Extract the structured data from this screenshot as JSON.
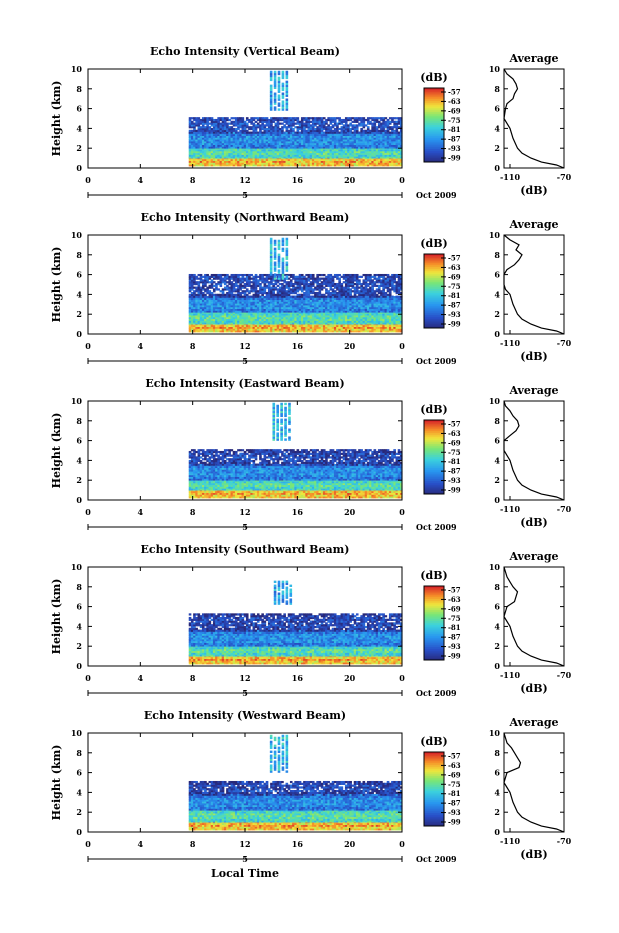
{
  "chart_data": [
    {
      "type": "heatmap",
      "title": "Echo Intensity (Vertical Beam)",
      "ylabel": "Height (km)",
      "ylim": [
        0,
        10
      ],
      "yticks": [
        "0",
        "2",
        "4",
        "6",
        "8",
        "10"
      ],
      "xlim": [
        0,
        24
      ],
      "xticks": [
        "0",
        "4",
        "8",
        "12",
        "16",
        "20",
        "0"
      ],
      "date_marker": "5",
      "date_label": "Oct 2009",
      "colorbar": {
        "unit": "(dB)",
        "ticks": [
          "-57",
          "-63",
          "-69",
          "-75",
          "-81",
          "-87",
          "-93",
          "-99"
        ]
      },
      "avg_panel": {
        "title": "Average",
        "xlabel": "(dB)",
        "xticks": [
          "-110",
          "-70"
        ],
        "yticks": [
          "0",
          "2",
          "4",
          "6",
          "8",
          "10"
        ]
      },
      "data_start_hour": 7.7,
      "layers": [
        {
          "y0": 0.2,
          "y1": 1.0,
          "level": 0.85
        },
        {
          "y0": 1.0,
          "y1": 2.0,
          "level": 0.55
        },
        {
          "y0": 2.0,
          "y1": 3.5,
          "level": 0.3
        },
        {
          "y0": 3.5,
          "y1": 5.0,
          "level": 0.15
        }
      ],
      "spike": {
        "x": 14.5,
        "y0": 5.8,
        "y1": 9.7,
        "level": 0.35
      },
      "avg_profile": [
        [
          -70,
          0
        ],
        [
          -75,
          0.3
        ],
        [
          -85,
          0.6
        ],
        [
          -92,
          1
        ],
        [
          -98,
          1.5
        ],
        [
          -101,
          2
        ],
        [
          -104,
          3
        ],
        [
          -106,
          4
        ],
        [
          -108,
          4.5
        ],
        [
          -110,
          5
        ],
        [
          -109,
          6
        ],
        [
          -108,
          6.5
        ],
        [
          -104,
          7
        ],
        [
          -103,
          7.5
        ],
        [
          -101,
          8
        ],
        [
          -102,
          8.5
        ],
        [
          -104,
          9
        ],
        [
          -108,
          9.5
        ],
        [
          -110,
          10
        ]
      ]
    },
    {
      "type": "heatmap",
      "title": "Echo Intensity (Northward Beam)",
      "ylabel": "Height (km)",
      "ylim": [
        0,
        10
      ],
      "yticks": [
        "0",
        "2",
        "4",
        "6",
        "8",
        "10"
      ],
      "xlim": [
        0,
        24
      ],
      "xticks": [
        "0",
        "4",
        "8",
        "12",
        "16",
        "20",
        "0"
      ],
      "date_marker": "5",
      "date_label": "Oct 2009",
      "colorbar": {
        "unit": "(dB)",
        "ticks": [
          "-57",
          "-63",
          "-69",
          "-75",
          "-81",
          "-87",
          "-93",
          "-99"
        ]
      },
      "avg_panel": {
        "title": "Average",
        "xlabel": "(dB)",
        "xticks": [
          "-110",
          "-70"
        ],
        "yticks": [
          "0",
          "2",
          "4",
          "6",
          "8",
          "10"
        ]
      },
      "data_start_hour": 7.7,
      "layers": [
        {
          "y0": 0.2,
          "y1": 1.0,
          "level": 0.85
        },
        {
          "y0": 1.0,
          "y1": 2.2,
          "level": 0.55
        },
        {
          "y0": 2.2,
          "y1": 3.7,
          "level": 0.3
        },
        {
          "y0": 3.7,
          "y1": 6.0,
          "level": 0.12
        }
      ],
      "spike": {
        "x": 14.5,
        "y0": 5.5,
        "y1": 9.5,
        "level": 0.4
      },
      "avg_profile": [
        [
          -70,
          0
        ],
        [
          -75,
          0.3
        ],
        [
          -85,
          0.6
        ],
        [
          -92,
          1
        ],
        [
          -98,
          1.5
        ],
        [
          -101,
          2
        ],
        [
          -104,
          3
        ],
        [
          -106,
          4
        ],
        [
          -109,
          4.5
        ],
        [
          -110,
          5
        ],
        [
          -110,
          6
        ],
        [
          -108,
          6.5
        ],
        [
          -103,
          7
        ],
        [
          -100,
          7.5
        ],
        [
          -98,
          8
        ],
        [
          -102,
          8.5
        ],
        [
          -100,
          9
        ],
        [
          -106,
          9.5
        ],
        [
          -110,
          10
        ]
      ]
    },
    {
      "type": "heatmap",
      "title": "Echo Intensity (Eastward Beam)",
      "ylabel": "Height (km)",
      "ylim": [
        0,
        10
      ],
      "yticks": [
        "0",
        "2",
        "4",
        "6",
        "8",
        "10"
      ],
      "xlim": [
        0,
        24
      ],
      "xticks": [
        "0",
        "4",
        "8",
        "12",
        "16",
        "20",
        "0"
      ],
      "date_marker": "5",
      "date_label": "Oct 2009",
      "colorbar": {
        "unit": "(dB)",
        "ticks": [
          "-57",
          "-63",
          "-69",
          "-75",
          "-81",
          "-87",
          "-93",
          "-99"
        ]
      },
      "avg_panel": {
        "title": "Average",
        "xlabel": "(dB)",
        "xticks": [
          "-110",
          "-70"
        ],
        "yticks": [
          "0",
          "2",
          "4",
          "6",
          "8",
          "10"
        ]
      },
      "data_start_hour": 7.7,
      "layers": [
        {
          "y0": 0.2,
          "y1": 1.0,
          "level": 0.85
        },
        {
          "y0": 1.0,
          "y1": 2.0,
          "level": 0.55
        },
        {
          "y0": 2.0,
          "y1": 3.5,
          "level": 0.3
        },
        {
          "y0": 3.5,
          "y1": 5.0,
          "level": 0.12
        }
      ],
      "spike": {
        "x": 14.7,
        "y0": 6.0,
        "y1": 9.7,
        "level": 0.4
      },
      "avg_profile": [
        [
          -70,
          0
        ],
        [
          -75,
          0.3
        ],
        [
          -85,
          0.6
        ],
        [
          -92,
          1
        ],
        [
          -98,
          1.5
        ],
        [
          -101,
          2
        ],
        [
          -104,
          3
        ],
        [
          -106,
          4
        ],
        [
          -108,
          4.5
        ],
        [
          -110,
          5
        ],
        [
          -110,
          6
        ],
        [
          -106,
          6.5
        ],
        [
          -102,
          7
        ],
        [
          -100,
          7.5
        ],
        [
          -101,
          8
        ],
        [
          -104,
          8.5
        ],
        [
          -106,
          9
        ],
        [
          -109,
          9.5
        ],
        [
          -110,
          10
        ]
      ]
    },
    {
      "type": "heatmap",
      "title": "Echo Intensity (Southward Beam)",
      "ylabel": "Height (km)",
      "ylim": [
        0,
        10
      ],
      "yticks": [
        "0",
        "2",
        "4",
        "6",
        "8",
        "10"
      ],
      "xlim": [
        0,
        24
      ],
      "xticks": [
        "0",
        "4",
        "8",
        "12",
        "16",
        "20",
        "0"
      ],
      "date_marker": "5",
      "date_label": "Oct 2009",
      "colorbar": {
        "unit": "(dB)",
        "ticks": [
          "-57",
          "-63",
          "-69",
          "-75",
          "-81",
          "-87",
          "-93",
          "-99"
        ]
      },
      "avg_panel": {
        "title": "Average",
        "xlabel": "(dB)",
        "xticks": [
          "-110",
          "-70"
        ],
        "yticks": [
          "0",
          "2",
          "4",
          "6",
          "8",
          "10"
        ]
      },
      "data_start_hour": 7.7,
      "layers": [
        {
          "y0": 0.2,
          "y1": 1.0,
          "level": 0.85
        },
        {
          "y0": 1.0,
          "y1": 2.0,
          "level": 0.55
        },
        {
          "y0": 2.0,
          "y1": 3.5,
          "level": 0.3
        },
        {
          "y0": 3.5,
          "y1": 5.2,
          "level": 0.12
        }
      ],
      "spike": {
        "x": 14.8,
        "y0": 6.2,
        "y1": 8.5,
        "level": 0.35
      },
      "avg_profile": [
        [
          -70,
          0
        ],
        [
          -75,
          0.3
        ],
        [
          -85,
          0.6
        ],
        [
          -92,
          1
        ],
        [
          -98,
          1.5
        ],
        [
          -101,
          2
        ],
        [
          -104,
          3
        ],
        [
          -106,
          4
        ],
        [
          -108,
          4.5
        ],
        [
          -110,
          5
        ],
        [
          -108,
          6
        ],
        [
          -103,
          6.5
        ],
        [
          -102,
          7
        ],
        [
          -101,
          7.5
        ],
        [
          -104,
          8
        ],
        [
          -106,
          8.5
        ],
        [
          -108,
          9
        ],
        [
          -110,
          10
        ]
      ]
    },
    {
      "type": "heatmap",
      "title": "Echo Intensity (Westward Beam)",
      "ylabel": "Height (km)",
      "ylim": [
        0,
        10
      ],
      "yticks": [
        "0",
        "2",
        "4",
        "6",
        "8",
        "10"
      ],
      "xlim": [
        0,
        24
      ],
      "xticks": [
        "0",
        "4",
        "8",
        "12",
        "16",
        "20",
        "0"
      ],
      "date_marker": "5",
      "date_label": "Oct 2009",
      "xlabel": "Local Time",
      "colorbar": {
        "unit": "(dB)",
        "ticks": [
          "-57",
          "-63",
          "-69",
          "-75",
          "-81",
          "-87",
          "-93",
          "-99"
        ]
      },
      "avg_panel": {
        "title": "Average",
        "xlabel": "(dB)",
        "xticks": [
          "-110",
          "-70"
        ],
        "yticks": [
          "0",
          "2",
          "4",
          "6",
          "8",
          "10"
        ]
      },
      "data_start_hour": 7.7,
      "layers": [
        {
          "y0": 0.2,
          "y1": 1.0,
          "level": 0.85
        },
        {
          "y0": 1.0,
          "y1": 2.2,
          "level": 0.55
        },
        {
          "y0": 2.2,
          "y1": 3.7,
          "level": 0.3
        },
        {
          "y0": 3.7,
          "y1": 5.0,
          "level": 0.12
        }
      ],
      "spike": {
        "x": 14.5,
        "y0": 6.0,
        "y1": 9.7,
        "level": 0.4
      },
      "avg_profile": [
        [
          -70,
          0
        ],
        [
          -75,
          0.3
        ],
        [
          -85,
          0.6
        ],
        [
          -92,
          1
        ],
        [
          -98,
          1.5
        ],
        [
          -101,
          2
        ],
        [
          -104,
          3
        ],
        [
          -106,
          4
        ],
        [
          -108,
          4.5
        ],
        [
          -110,
          5
        ],
        [
          -108,
          6
        ],
        [
          -100,
          6.5
        ],
        [
          -99,
          7
        ],
        [
          -101,
          7.5
        ],
        [
          -103,
          8
        ],
        [
          -105,
          8.5
        ],
        [
          -108,
          9
        ],
        [
          -110,
          10
        ]
      ]
    }
  ]
}
